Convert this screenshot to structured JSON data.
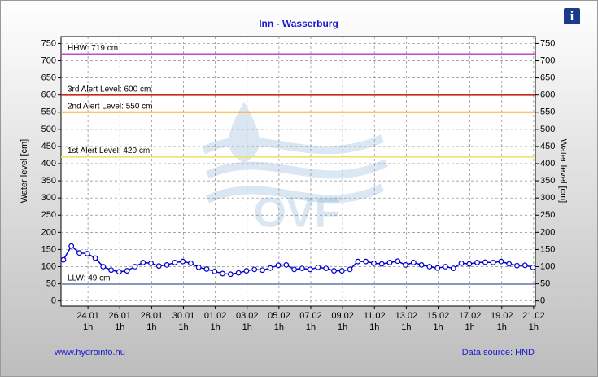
{
  "chart_data": {
    "type": "line",
    "title": "Inn - Wasserburg",
    "ylabel": "Water level [cm]",
    "y2label": "Water level [cm]",
    "footer_left": "www.hydroinfo.hu",
    "footer_right": "Data source: HND",
    "watermark": "OVF",
    "xlim": [
      22.35,
      52.15
    ],
    "ylim": [
      -15,
      770
    ],
    "y2lim": [
      -15,
      770
    ],
    "yticks": [
      0,
      50,
      100,
      150,
      200,
      250,
      300,
      350,
      400,
      450,
      500,
      550,
      600,
      650,
      700,
      750
    ],
    "y2ticks": [
      0,
      50,
      100,
      150,
      200,
      250,
      300,
      350,
      400,
      450,
      500,
      550,
      600,
      650,
      700,
      750
    ],
    "xticks": [
      {
        "value": 24.042,
        "label": "24.01",
        "sublabel": "1h"
      },
      {
        "value": 26.042,
        "label": "26.01",
        "sublabel": "1h"
      },
      {
        "value": 28.042,
        "label": "28.01",
        "sublabel": "1h"
      },
      {
        "value": 30.042,
        "label": "30.01",
        "sublabel": "1h"
      },
      {
        "value": 32.042,
        "label": "01.02",
        "sublabel": "1h"
      },
      {
        "value": 34.042,
        "label": "03.02",
        "sublabel": "1h"
      },
      {
        "value": 36.042,
        "label": "05.02",
        "sublabel": "1h"
      },
      {
        "value": 38.042,
        "label": "07.02",
        "sublabel": "1h"
      },
      {
        "value": 40.042,
        "label": "09.02",
        "sublabel": "1h"
      },
      {
        "value": 42.042,
        "label": "11.02",
        "sublabel": "1h"
      },
      {
        "value": 44.042,
        "label": "13.02",
        "sublabel": "1h"
      },
      {
        "value": 46.042,
        "label": "15.02",
        "sublabel": "1h"
      },
      {
        "value": 48.042,
        "label": "17.02",
        "sublabel": "1h"
      },
      {
        "value": 50.042,
        "label": "19.02",
        "sublabel": "1h"
      },
      {
        "value": 52.042,
        "label": "21.02",
        "sublabel": "1h"
      }
    ],
    "grid": true,
    "reference_lines": [
      {
        "label": "HHW: 719 cm",
        "value": 719,
        "color": "#cc44cc"
      },
      {
        "label": "3rd Alert Level: 600 cm",
        "value": 600,
        "color": "#cc2222"
      },
      {
        "label": "2nd Alert Level: 550 cm",
        "value": 550,
        "color": "#ffaa33"
      },
      {
        "label": "1st Alert Level: 420 cm",
        "value": 420,
        "color": "#f0e070"
      },
      {
        "label": "LLW: 49 cm",
        "value": 49,
        "color": "#8899bb"
      }
    ],
    "x": [
      22.5,
      23,
      23.5,
      24,
      24.5,
      25,
      25.5,
      26,
      26.5,
      27,
      27.5,
      28,
      28.5,
      29,
      29.5,
      30,
      30.5,
      31,
      31.5,
      32,
      32.5,
      33,
      33.5,
      34,
      34.5,
      35,
      35.5,
      36,
      36.5,
      37,
      37.5,
      38,
      38.5,
      39,
      39.5,
      40,
      40.5,
      41,
      41.5,
      42,
      42.5,
      43,
      43.5,
      44,
      44.5,
      45,
      45.5,
      46,
      46.5,
      47,
      47.5,
      48,
      48.5,
      49,
      49.5,
      50,
      50.5,
      51,
      51.5,
      52
    ],
    "series": [
      {
        "name": "Water level",
        "color": "#0000cc",
        "values": [
          120,
          160,
          140,
          138,
          125,
          100,
          90,
          85,
          88,
          100,
          112,
          110,
          102,
          105,
          112,
          115,
          110,
          98,
          93,
          86,
          80,
          78,
          82,
          88,
          92,
          90,
          96,
          104,
          105,
          92,
          95,
          92,
          98,
          95,
          88,
          88,
          92,
          115,
          115,
          110,
          108,
          112,
          116,
          105,
          112,
          105,
          100,
          96,
          100,
          95,
          110,
          108,
          112,
          113,
          112,
          115,
          108,
          103,
          104,
          98
        ]
      }
    ]
  }
}
